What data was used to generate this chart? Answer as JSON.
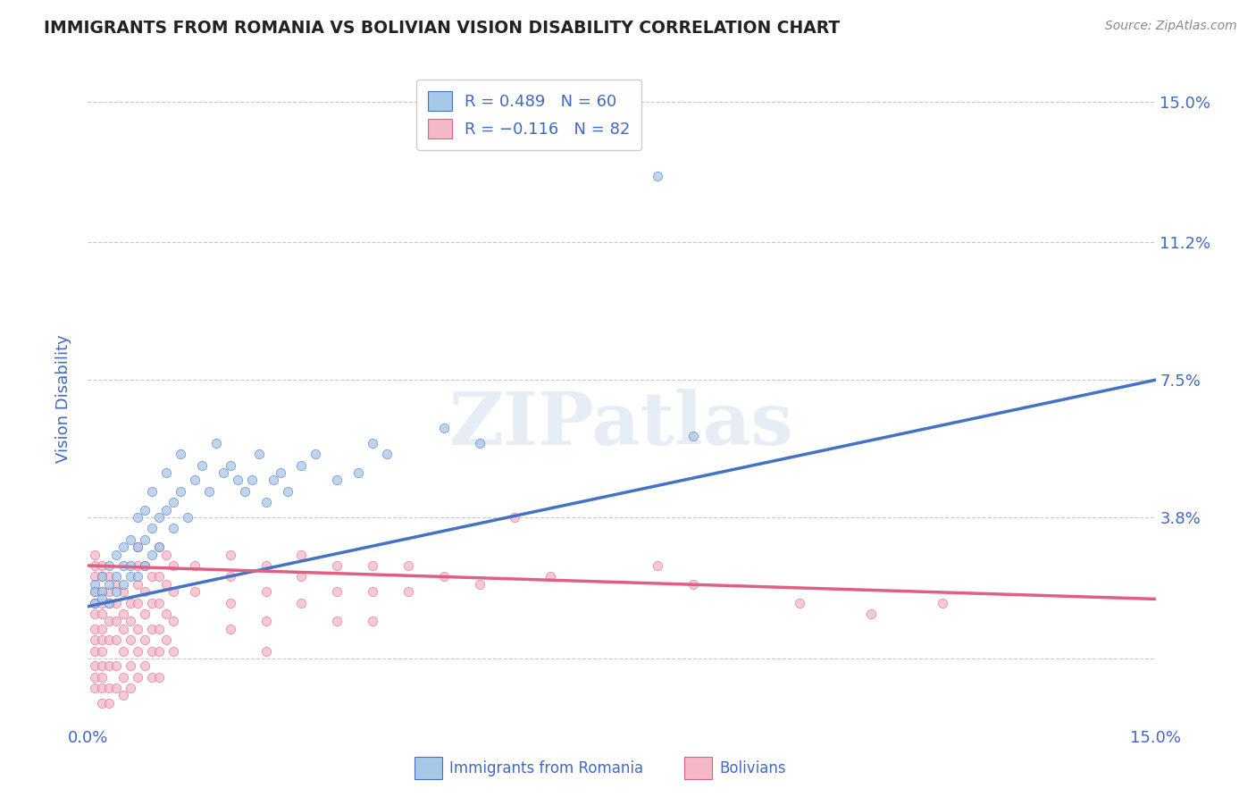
{
  "title": "IMMIGRANTS FROM ROMANIA VS BOLIVIAN VISION DISABILITY CORRELATION CHART",
  "source": "Source: ZipAtlas.com",
  "ylabel": "Vision Disability",
  "yticks": [
    0.0,
    0.038,
    0.075,
    0.112,
    0.15
  ],
  "ytick_labels": [
    "",
    "3.8%",
    "7.5%",
    "11.2%",
    "15.0%"
  ],
  "xlim": [
    0.0,
    0.15
  ],
  "ylim": [
    -0.018,
    0.158
  ],
  "color_blue": "#a8c8e8",
  "color_pink": "#f4b8c8",
  "color_blue_dark": "#4472c4",
  "color_pink_dark": "#e06080",
  "color_text": "#4169c0",
  "background_color": "#ffffff",
  "romania_scatter": [
    [
      0.001,
      0.02
    ],
    [
      0.001,
      0.018
    ],
    [
      0.001,
      0.015
    ],
    [
      0.002,
      0.022
    ],
    [
      0.002,
      0.018
    ],
    [
      0.002,
      0.016
    ],
    [
      0.003,
      0.025
    ],
    [
      0.003,
      0.02
    ],
    [
      0.003,
      0.015
    ],
    [
      0.004,
      0.028
    ],
    [
      0.004,
      0.022
    ],
    [
      0.004,
      0.018
    ],
    [
      0.005,
      0.03
    ],
    [
      0.005,
      0.025
    ],
    [
      0.005,
      0.02
    ],
    [
      0.006,
      0.032
    ],
    [
      0.006,
      0.025
    ],
    [
      0.006,
      0.022
    ],
    [
      0.007,
      0.038
    ],
    [
      0.007,
      0.03
    ],
    [
      0.007,
      0.022
    ],
    [
      0.008,
      0.04
    ],
    [
      0.008,
      0.032
    ],
    [
      0.008,
      0.025
    ],
    [
      0.009,
      0.045
    ],
    [
      0.009,
      0.035
    ],
    [
      0.009,
      0.028
    ],
    [
      0.01,
      0.038
    ],
    [
      0.01,
      0.03
    ],
    [
      0.011,
      0.05
    ],
    [
      0.011,
      0.04
    ],
    [
      0.012,
      0.042
    ],
    [
      0.012,
      0.035
    ],
    [
      0.013,
      0.055
    ],
    [
      0.013,
      0.045
    ],
    [
      0.014,
      0.038
    ],
    [
      0.015,
      0.048
    ],
    [
      0.016,
      0.052
    ],
    [
      0.017,
      0.045
    ],
    [
      0.018,
      0.058
    ],
    [
      0.019,
      0.05
    ],
    [
      0.02,
      0.052
    ],
    [
      0.021,
      0.048
    ],
    [
      0.022,
      0.045
    ],
    [
      0.023,
      0.048
    ],
    [
      0.024,
      0.055
    ],
    [
      0.025,
      0.042
    ],
    [
      0.026,
      0.048
    ],
    [
      0.027,
      0.05
    ],
    [
      0.028,
      0.045
    ],
    [
      0.03,
      0.052
    ],
    [
      0.032,
      0.055
    ],
    [
      0.035,
      0.048
    ],
    [
      0.038,
      0.05
    ],
    [
      0.04,
      0.058
    ],
    [
      0.042,
      0.055
    ],
    [
      0.05,
      0.062
    ],
    [
      0.055,
      0.058
    ],
    [
      0.08,
      0.13
    ],
    [
      0.085,
      0.06
    ]
  ],
  "bolivia_scatter": [
    [
      0.001,
      0.028
    ],
    [
      0.001,
      0.025
    ],
    [
      0.001,
      0.022
    ],
    [
      0.001,
      0.018
    ],
    [
      0.001,
      0.015
    ],
    [
      0.001,
      0.012
    ],
    [
      0.001,
      0.008
    ],
    [
      0.001,
      0.005
    ],
    [
      0.001,
      0.002
    ],
    [
      0.001,
      -0.002
    ],
    [
      0.001,
      -0.005
    ],
    [
      0.001,
      -0.008
    ],
    [
      0.002,
      0.025
    ],
    [
      0.002,
      0.022
    ],
    [
      0.002,
      0.018
    ],
    [
      0.002,
      0.015
    ],
    [
      0.002,
      0.012
    ],
    [
      0.002,
      0.008
    ],
    [
      0.002,
      0.005
    ],
    [
      0.002,
      0.002
    ],
    [
      0.002,
      -0.002
    ],
    [
      0.002,
      -0.005
    ],
    [
      0.002,
      -0.008
    ],
    [
      0.002,
      -0.012
    ],
    [
      0.003,
      0.022
    ],
    [
      0.003,
      0.018
    ],
    [
      0.003,
      0.015
    ],
    [
      0.003,
      0.01
    ],
    [
      0.003,
      0.005
    ],
    [
      0.003,
      -0.002
    ],
    [
      0.003,
      -0.008
    ],
    [
      0.003,
      -0.012
    ],
    [
      0.004,
      0.02
    ],
    [
      0.004,
      0.015
    ],
    [
      0.004,
      0.01
    ],
    [
      0.004,
      0.005
    ],
    [
      0.004,
      -0.002
    ],
    [
      0.004,
      -0.008
    ],
    [
      0.005,
      0.018
    ],
    [
      0.005,
      0.012
    ],
    [
      0.005,
      0.008
    ],
    [
      0.005,
      0.002
    ],
    [
      0.005,
      -0.005
    ],
    [
      0.005,
      -0.01
    ],
    [
      0.006,
      0.015
    ],
    [
      0.006,
      0.01
    ],
    [
      0.006,
      0.005
    ],
    [
      0.006,
      -0.002
    ],
    [
      0.006,
      -0.008
    ],
    [
      0.007,
      0.03
    ],
    [
      0.007,
      0.025
    ],
    [
      0.007,
      0.02
    ],
    [
      0.007,
      0.015
    ],
    [
      0.007,
      0.008
    ],
    [
      0.007,
      0.002
    ],
    [
      0.007,
      -0.005
    ],
    [
      0.008,
      0.025
    ],
    [
      0.008,
      0.018
    ],
    [
      0.008,
      0.012
    ],
    [
      0.008,
      0.005
    ],
    [
      0.008,
      -0.002
    ],
    [
      0.009,
      0.022
    ],
    [
      0.009,
      0.015
    ],
    [
      0.009,
      0.008
    ],
    [
      0.009,
      0.002
    ],
    [
      0.009,
      -0.005
    ],
    [
      0.01,
      0.03
    ],
    [
      0.01,
      0.022
    ],
    [
      0.01,
      0.015
    ],
    [
      0.01,
      0.008
    ],
    [
      0.01,
      0.002
    ],
    [
      0.01,
      -0.005
    ],
    [
      0.011,
      0.028
    ],
    [
      0.011,
      0.02
    ],
    [
      0.011,
      0.012
    ],
    [
      0.011,
      0.005
    ],
    [
      0.012,
      0.025
    ],
    [
      0.012,
      0.018
    ],
    [
      0.012,
      0.01
    ],
    [
      0.012,
      0.002
    ],
    [
      0.015,
      0.025
    ],
    [
      0.015,
      0.018
    ],
    [
      0.02,
      0.028
    ],
    [
      0.02,
      0.022
    ],
    [
      0.02,
      0.015
    ],
    [
      0.02,
      0.008
    ],
    [
      0.025,
      0.025
    ],
    [
      0.025,
      0.018
    ],
    [
      0.025,
      0.01
    ],
    [
      0.025,
      0.002
    ],
    [
      0.03,
      0.028
    ],
    [
      0.03,
      0.022
    ],
    [
      0.03,
      0.015
    ],
    [
      0.035,
      0.025
    ],
    [
      0.035,
      0.018
    ],
    [
      0.035,
      0.01
    ],
    [
      0.04,
      0.025
    ],
    [
      0.04,
      0.018
    ],
    [
      0.04,
      0.01
    ],
    [
      0.045,
      0.025
    ],
    [
      0.045,
      0.018
    ],
    [
      0.05,
      0.022
    ],
    [
      0.055,
      0.02
    ],
    [
      0.06,
      0.038
    ],
    [
      0.065,
      0.022
    ],
    [
      0.08,
      0.025
    ],
    [
      0.085,
      0.02
    ],
    [
      0.1,
      0.015
    ],
    [
      0.11,
      0.012
    ],
    [
      0.12,
      0.015
    ]
  ],
  "romania_line_x": [
    0.0,
    0.15
  ],
  "romania_line_y": [
    0.014,
    0.075
  ],
  "bolivia_line_x": [
    0.0,
    0.15
  ],
  "bolivia_line_y": [
    0.025,
    0.016
  ]
}
